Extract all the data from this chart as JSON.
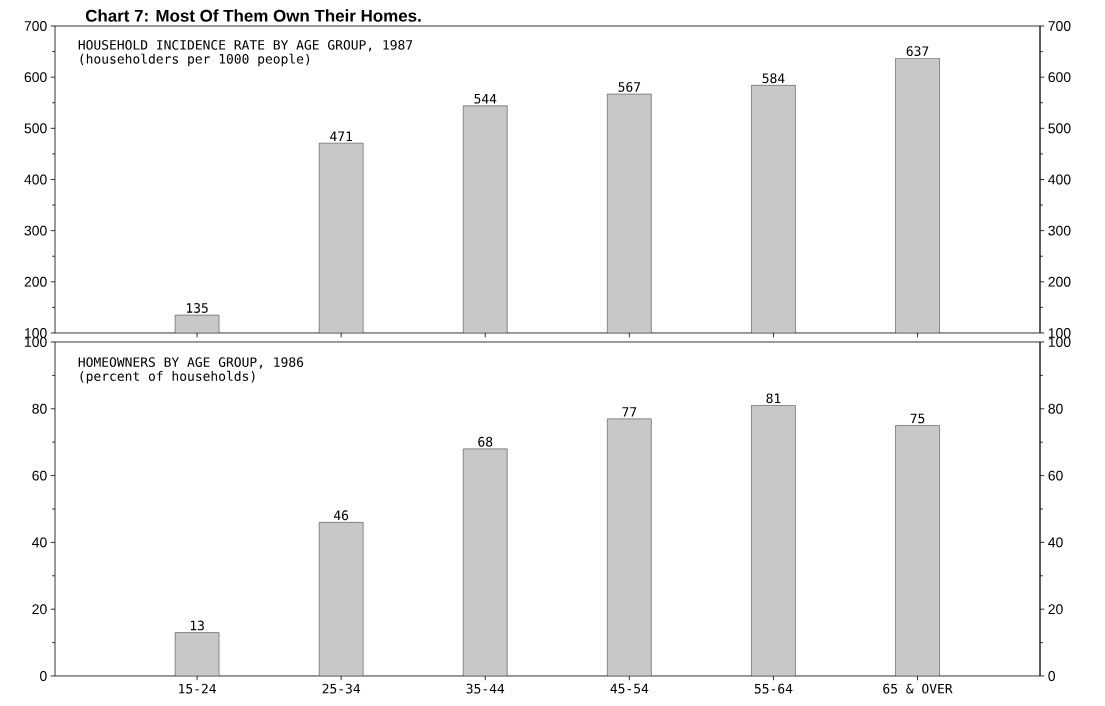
{
  "chart_data": [
    {
      "type": "bar",
      "title": "HOUSEHOLD INCIDENCE RATE BY AGE GROUP, 1987",
      "subtitle": "(householders per 1000 people)",
      "annotations": [
        "Chart 7: Most Of Them Own Their Homes."
      ],
      "categories": [
        null,
        null,
        null,
        null,
        null,
        null
      ],
      "values": [
        135,
        471,
        544,
        567,
        584,
        637
      ],
      "color": "#c8c8c8",
      "data_labels": true,
      "ylim": [
        100,
        700
      ],
      "yticks": [
        100,
        200,
        300,
        400,
        500,
        600,
        700
      ],
      "y2lim": [
        100,
        700
      ],
      "y2ticks": [
        100,
        200,
        300,
        400,
        500,
        600,
        700
      ],
      "tick_labels": "y"
    },
    {
      "type": "bar",
      "title": "HOMEOWNERS BY AGE GROUP, 1986",
      "subtitle": "(percent of households)",
      "categories": [
        "15-24",
        "25-34",
        "35-44",
        "45-54",
        "55-64",
        "65 & OVER"
      ],
      "values": [
        13,
        46,
        68,
        77,
        81,
        75
      ],
      "color": "#c8c8c8",
      "data_labels": true,
      "ylim": [
        0,
        100
      ],
      "yticks": [
        0,
        20,
        40,
        60,
        80,
        100
      ],
      "y2lim": [
        0,
        100
      ],
      "y2ticks": [
        0,
        20,
        40,
        60,
        80,
        100
      ]
    }
  ]
}
